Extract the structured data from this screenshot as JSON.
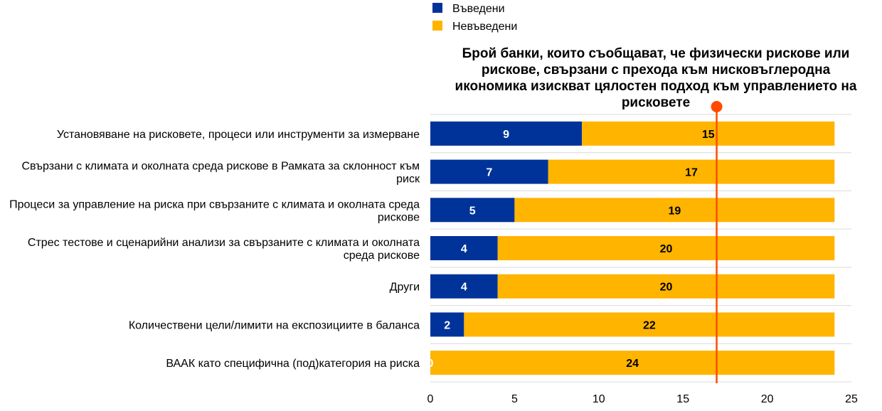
{
  "chart_data": {
    "type": "bar",
    "orientation": "horizontal",
    "stacked": true,
    "categories": [
      "Установяване на рисковете, процеси или инструменти за измерване",
      "Свързани с климата и околната среда рискове в Рамката за склонност към риск",
      "Процеси за управление на риска при свързаните с климата и околната среда рискове",
      "Стрес тестове и сценарийни анализи за свързаните с климата и околната среда рискове",
      "Други",
      "Количествени цели/лимити на експозициите в баланса",
      "ВААК като специфична (под)категория на риска"
    ],
    "series": [
      {
        "name": "Въведени",
        "color": "#003399",
        "values": [
          9,
          7,
          5,
          4,
          4,
          2,
          0
        ]
      },
      {
        "name": "Невъведени",
        "color": "#FFB400",
        "values": [
          15,
          17,
          19,
          20,
          20,
          22,
          24
        ]
      }
    ],
    "xlim": [
      0,
      25
    ],
    "xticks": [
      0,
      5,
      10,
      15,
      20,
      25
    ],
    "grid": true,
    "legend_position": "top-center",
    "reference_line": {
      "value": 17,
      "color": "#FF4B00",
      "label": "Брой банки, които съобщават, че физически рискове или рискове, свързани с прехода към нисковъглеродна икономика изискват цялостен подход към управлението на рисковете"
    }
  }
}
